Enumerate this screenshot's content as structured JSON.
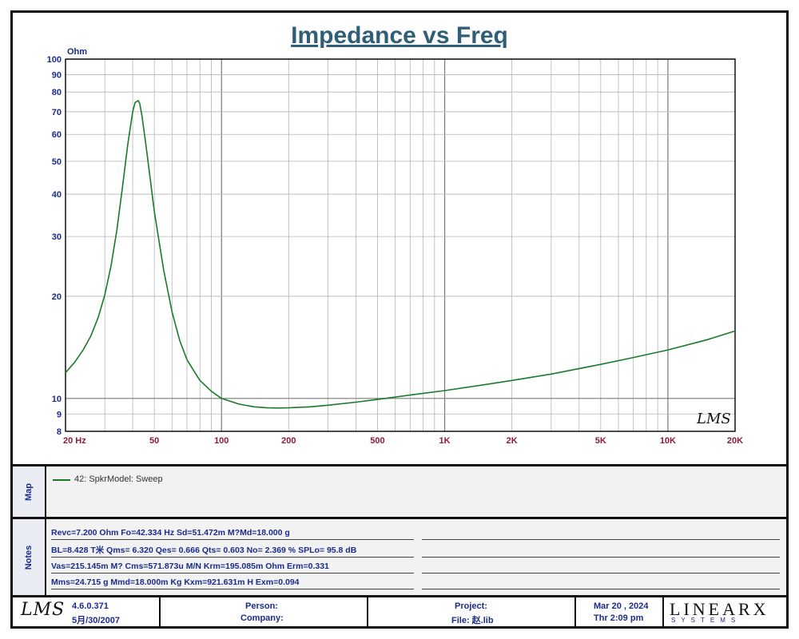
{
  "chart_data": {
    "type": "line",
    "title": "Impedance vs Freq",
    "ylabel": "Ohm",
    "xscale": "log",
    "yscale": "log",
    "xlim": [
      20,
      20000
    ],
    "ylim": [
      8,
      100
    ],
    "grid": true,
    "x_tick_labels": [
      {
        "v": 20,
        "t": "20  Hz"
      },
      {
        "v": 50,
        "t": "50"
      },
      {
        "v": 100,
        "t": "100"
      },
      {
        "v": 200,
        "t": "200"
      },
      {
        "v": 500,
        "t": "500"
      },
      {
        "v": 1000,
        "t": "1K"
      },
      {
        "v": 2000,
        "t": "2K"
      },
      {
        "v": 5000,
        "t": "5K"
      },
      {
        "v": 10000,
        "t": "10K"
      },
      {
        "v": 20000,
        "t": "20K"
      }
    ],
    "y_tick_labels": [
      {
        "v": 100,
        "t": "100"
      },
      {
        "v": 90,
        "t": "90"
      },
      {
        "v": 80,
        "t": "80"
      },
      {
        "v": 70,
        "t": "70"
      },
      {
        "v": 60,
        "t": "60"
      },
      {
        "v": 50,
        "t": "50"
      },
      {
        "v": 40,
        "t": "40"
      },
      {
        "v": 30,
        "t": "30"
      },
      {
        "v": 20,
        "t": "20"
      },
      {
        "v": 10,
        "t": "10"
      },
      {
        "v": 9,
        "t": "9"
      },
      {
        "v": 8,
        "t": "8"
      }
    ],
    "series": [
      {
        "name": "42: SpkrModel: Sweep",
        "color": "#1a7a2a",
        "x": [
          20,
          22,
          24,
          26,
          28,
          30,
          32,
          34,
          36,
          38,
          40,
          41,
          42,
          42.3,
          43,
          44,
          46,
          48,
          50,
          55,
          60,
          65,
          70,
          80,
          90,
          100,
          120,
          140,
          160,
          180,
          200,
          250,
          300,
          400,
          500,
          700,
          1000,
          1500,
          2000,
          3000,
          5000,
          7000,
          10000,
          15000,
          20000
        ],
        "y": [
          11.9,
          12.8,
          13.9,
          15.3,
          17.3,
          20.2,
          24.6,
          31.5,
          42.0,
          56.0,
          70.0,
          74.5,
          75.2,
          75.5,
          74.0,
          68.0,
          55.0,
          44.0,
          35.5,
          24.0,
          18.0,
          14.8,
          13.0,
          11.3,
          10.5,
          10.0,
          9.62,
          9.45,
          9.38,
          9.37,
          9.38,
          9.45,
          9.55,
          9.75,
          9.93,
          10.23,
          10.55,
          10.97,
          11.3,
          11.8,
          12.6,
          13.2,
          13.9,
          14.9,
          15.8
        ]
      }
    ]
  },
  "map_panel": {
    "label": "Map",
    "legend_text": "42: SpkrModel: Sweep",
    "legend_color": "#1a7a2a"
  },
  "notes_panel": {
    "label": "Notes",
    "lines": [
      "Revc=7.200 Ohm  Fo=42.334 Hz  Sd=51.472m M?Md=18.000 g",
      "BL=8.428 T米  Qms= 6.320  Qes= 0.666  Qts= 0.603  No= 2.369 %  SPLo= 95.8 dB",
      "Vas=215.145m M? Cms=571.873u M/N  Krm=195.085m Ohm  Erm=0.331",
      "Mms=24.715 g  Mmd=18.000m Kg  Kxm=921.631m H  Exm=0.094"
    ]
  },
  "watermark": "LMS",
  "footer": {
    "logo": "LMS",
    "version": "4.6.0.371",
    "date": "5月/30/2007",
    "person_label": "Person:",
    "company_label": "Company:",
    "project_label": "Project:",
    "file_label": "File: 赵.lib",
    "date_now": "Mar 20 , 2024",
    "time_now": "Thr  2:09 pm",
    "brand": "LINEARX",
    "brand_sub": "SYSTEMS"
  }
}
